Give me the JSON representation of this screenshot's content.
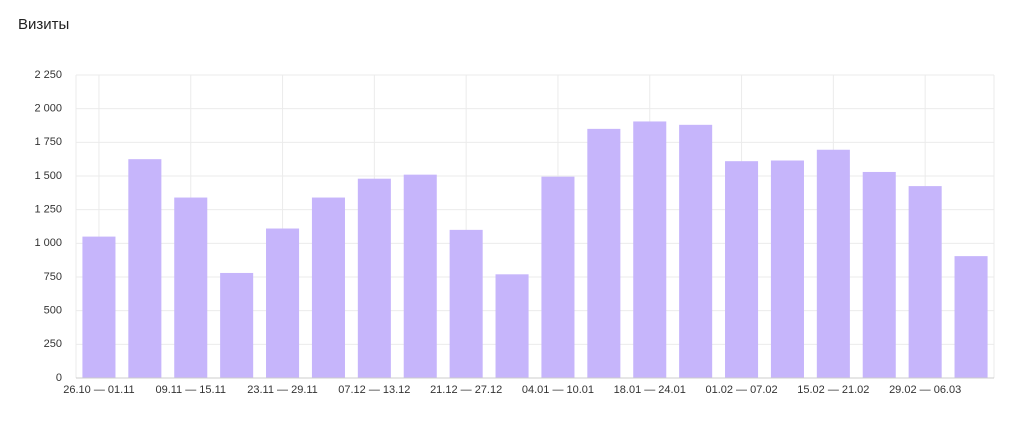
{
  "chart_data": {
    "type": "bar",
    "title": "Визиты",
    "categories": [
      "26.10 — 01.11",
      null,
      "09.11 — 15.11",
      null,
      "23.11 — 29.11",
      null,
      "07.12 — 13.12",
      null,
      "21.12 — 27.12",
      null,
      "04.01 — 10.01",
      null,
      "18.01 — 24.01",
      null,
      "01.02 — 07.02",
      null,
      "15.02 — 21.02",
      null,
      "29.02 — 06.03",
      null
    ],
    "values": [
      1050,
      1625,
      1340,
      780,
      1110,
      1340,
      1480,
      1510,
      1100,
      770,
      1495,
      1850,
      1905,
      1880,
      1610,
      1615,
      1695,
      1530,
      1425,
      905
    ],
    "color": "#c6b5fb",
    "ylim": [
      0,
      2250
    ],
    "yticks": [
      0,
      250,
      500,
      750,
      {
        "value": 1000,
        "label": "1 000"
      },
      {
        "value": 1250,
        "label": "1 250"
      },
      {
        "value": 1500,
        "label": "1 500"
      },
      {
        "value": 1750,
        "label": "1 750"
      },
      {
        "value": 2000,
        "label": "2 000"
      },
      {
        "value": 2250,
        "label": "2 250"
      }
    ],
    "grid": true
  }
}
